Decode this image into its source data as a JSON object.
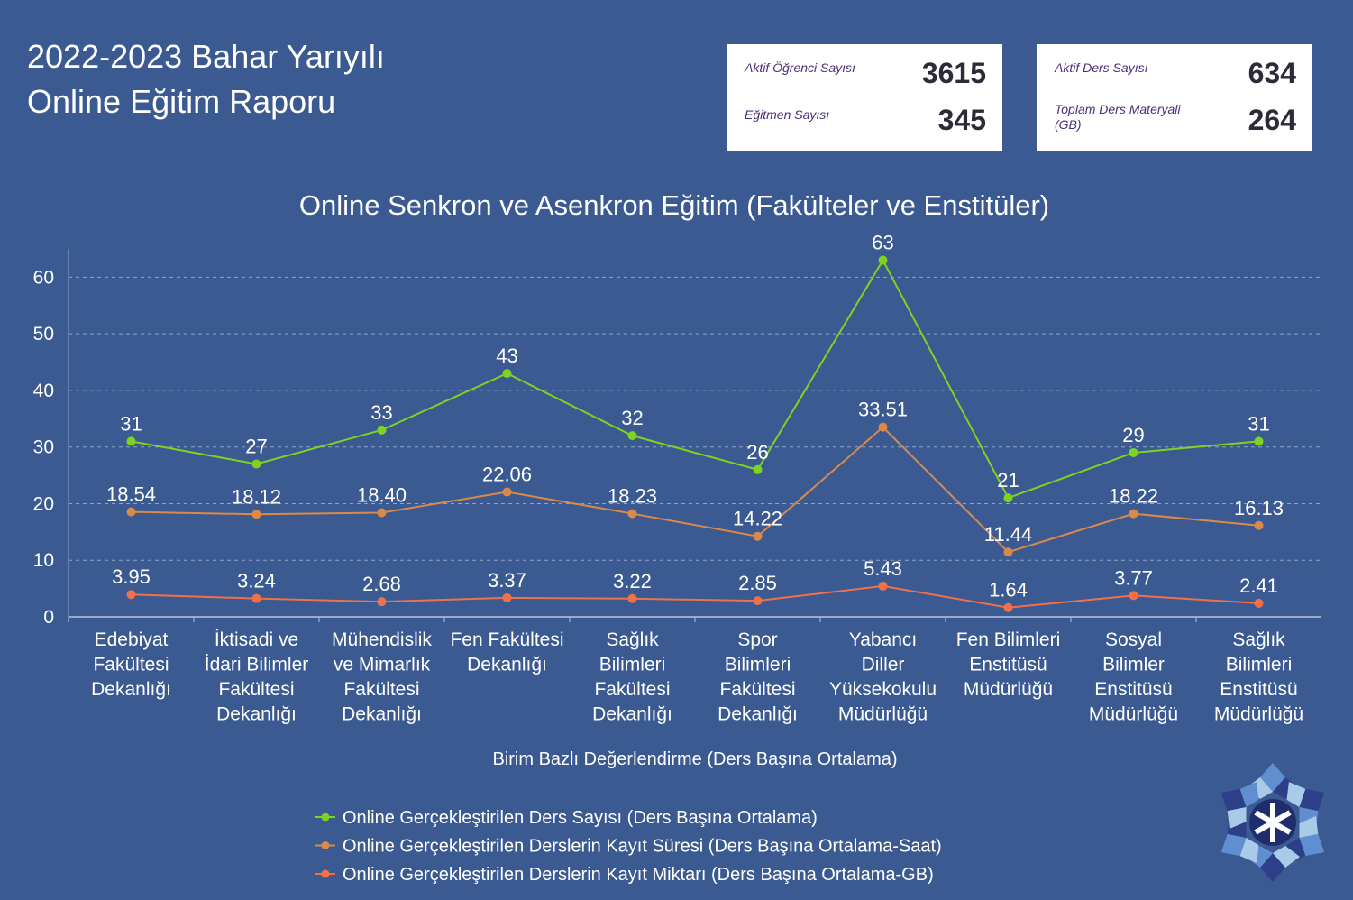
{
  "header": {
    "title_line1": "2022-2023 Bahar Yarıyılı",
    "title_line2": "Online Eğitim Raporu"
  },
  "stats": {
    "active_students_label": "Aktif Öğrenci Sayısı",
    "active_students_value": "3615",
    "instructors_label": "Eğitmen Sayısı",
    "instructors_value": "345",
    "active_courses_label": "Aktif Ders Sayısı",
    "active_courses_value": "634",
    "materials_label": "Toplam Ders Materyali (GB)",
    "materials_value": "264"
  },
  "chart_data": {
    "type": "line",
    "title": "Online Senkron ve Asenkron Eğitim (Fakülteler ve Enstitüler)",
    "xlabel": "Birim Bazlı Değerlendirme (Ders Başına Ortalama)",
    "ylabel": "",
    "ylim": [
      0,
      65
    ],
    "yticks": [
      0,
      10,
      20,
      30,
      40,
      50,
      60
    ],
    "grid": true,
    "legend_position": "bottom",
    "categories": [
      [
        "Edebiyat",
        "Fakültesi",
        "Dekanlığı"
      ],
      [
        "İktisadi ve",
        "İdari Bilimler",
        "Fakültesi",
        "Dekanlığı"
      ],
      [
        "Mühendislik",
        "ve Mimarlık",
        "Fakültesi",
        "Dekanlığı"
      ],
      [
        "Fen Fakültesi",
        "Dekanlığı"
      ],
      [
        "Sağlık",
        "Bilimleri",
        "Fakültesi",
        "Dekanlığı"
      ],
      [
        "Spor",
        "Bilimleri",
        "Fakültesi",
        "Dekanlığı"
      ],
      [
        "Yabancı",
        "Diller",
        "Yüksekokulu",
        "Müdürlüğü"
      ],
      [
        "Fen Bilimleri",
        "Enstitüsü",
        "Müdürlüğü"
      ],
      [
        "Sosyal",
        "Bilimler",
        "Enstitüsü",
        "Müdürlüğü"
      ],
      [
        "Sağlık",
        "Bilimleri",
        "Enstitüsü",
        "Müdürlüğü"
      ]
    ],
    "series": [
      {
        "name": "Online Gerçekleştirilen Ders Sayısı (Ders Başına Ortalama)",
        "color": "#7ed321",
        "values": [
          31,
          27,
          33,
          43,
          32,
          26,
          63,
          21,
          29,
          31
        ],
        "labels": [
          "31",
          "27",
          "33",
          "43",
          "32",
          "26",
          "63",
          "21",
          "29",
          "31"
        ]
      },
      {
        "name": "Online Gerçekleştirilen Derslerin Kayıt Süresi (Ders Başına Ortalama-Saat)",
        "color": "#d98a4a",
        "values": [
          18.54,
          18.12,
          18.4,
          22.06,
          18.23,
          14.22,
          33.51,
          11.44,
          18.22,
          16.13
        ],
        "labels": [
          "18.54",
          "18.12",
          "18.40",
          "22.06",
          "18.23",
          "14.22",
          "33.51",
          "11.44",
          "18.22",
          "16.13"
        ]
      },
      {
        "name": "Online Gerçekleştirilen Derslerin Kayıt Miktarı (Ders Başına Ortalama-GB)",
        "color": "#f0704a",
        "values": [
          3.95,
          3.24,
          2.68,
          3.37,
          3.22,
          2.85,
          5.43,
          1.64,
          3.77,
          2.41
        ],
        "labels": [
          "3.95",
          "3.24",
          "2.68",
          "3.37",
          "3.22",
          "2.85",
          "5.43",
          "1.64",
          "3.77",
          "2.41"
        ]
      }
    ]
  },
  "logo": {
    "icon": "snowflake-logo-icon"
  }
}
